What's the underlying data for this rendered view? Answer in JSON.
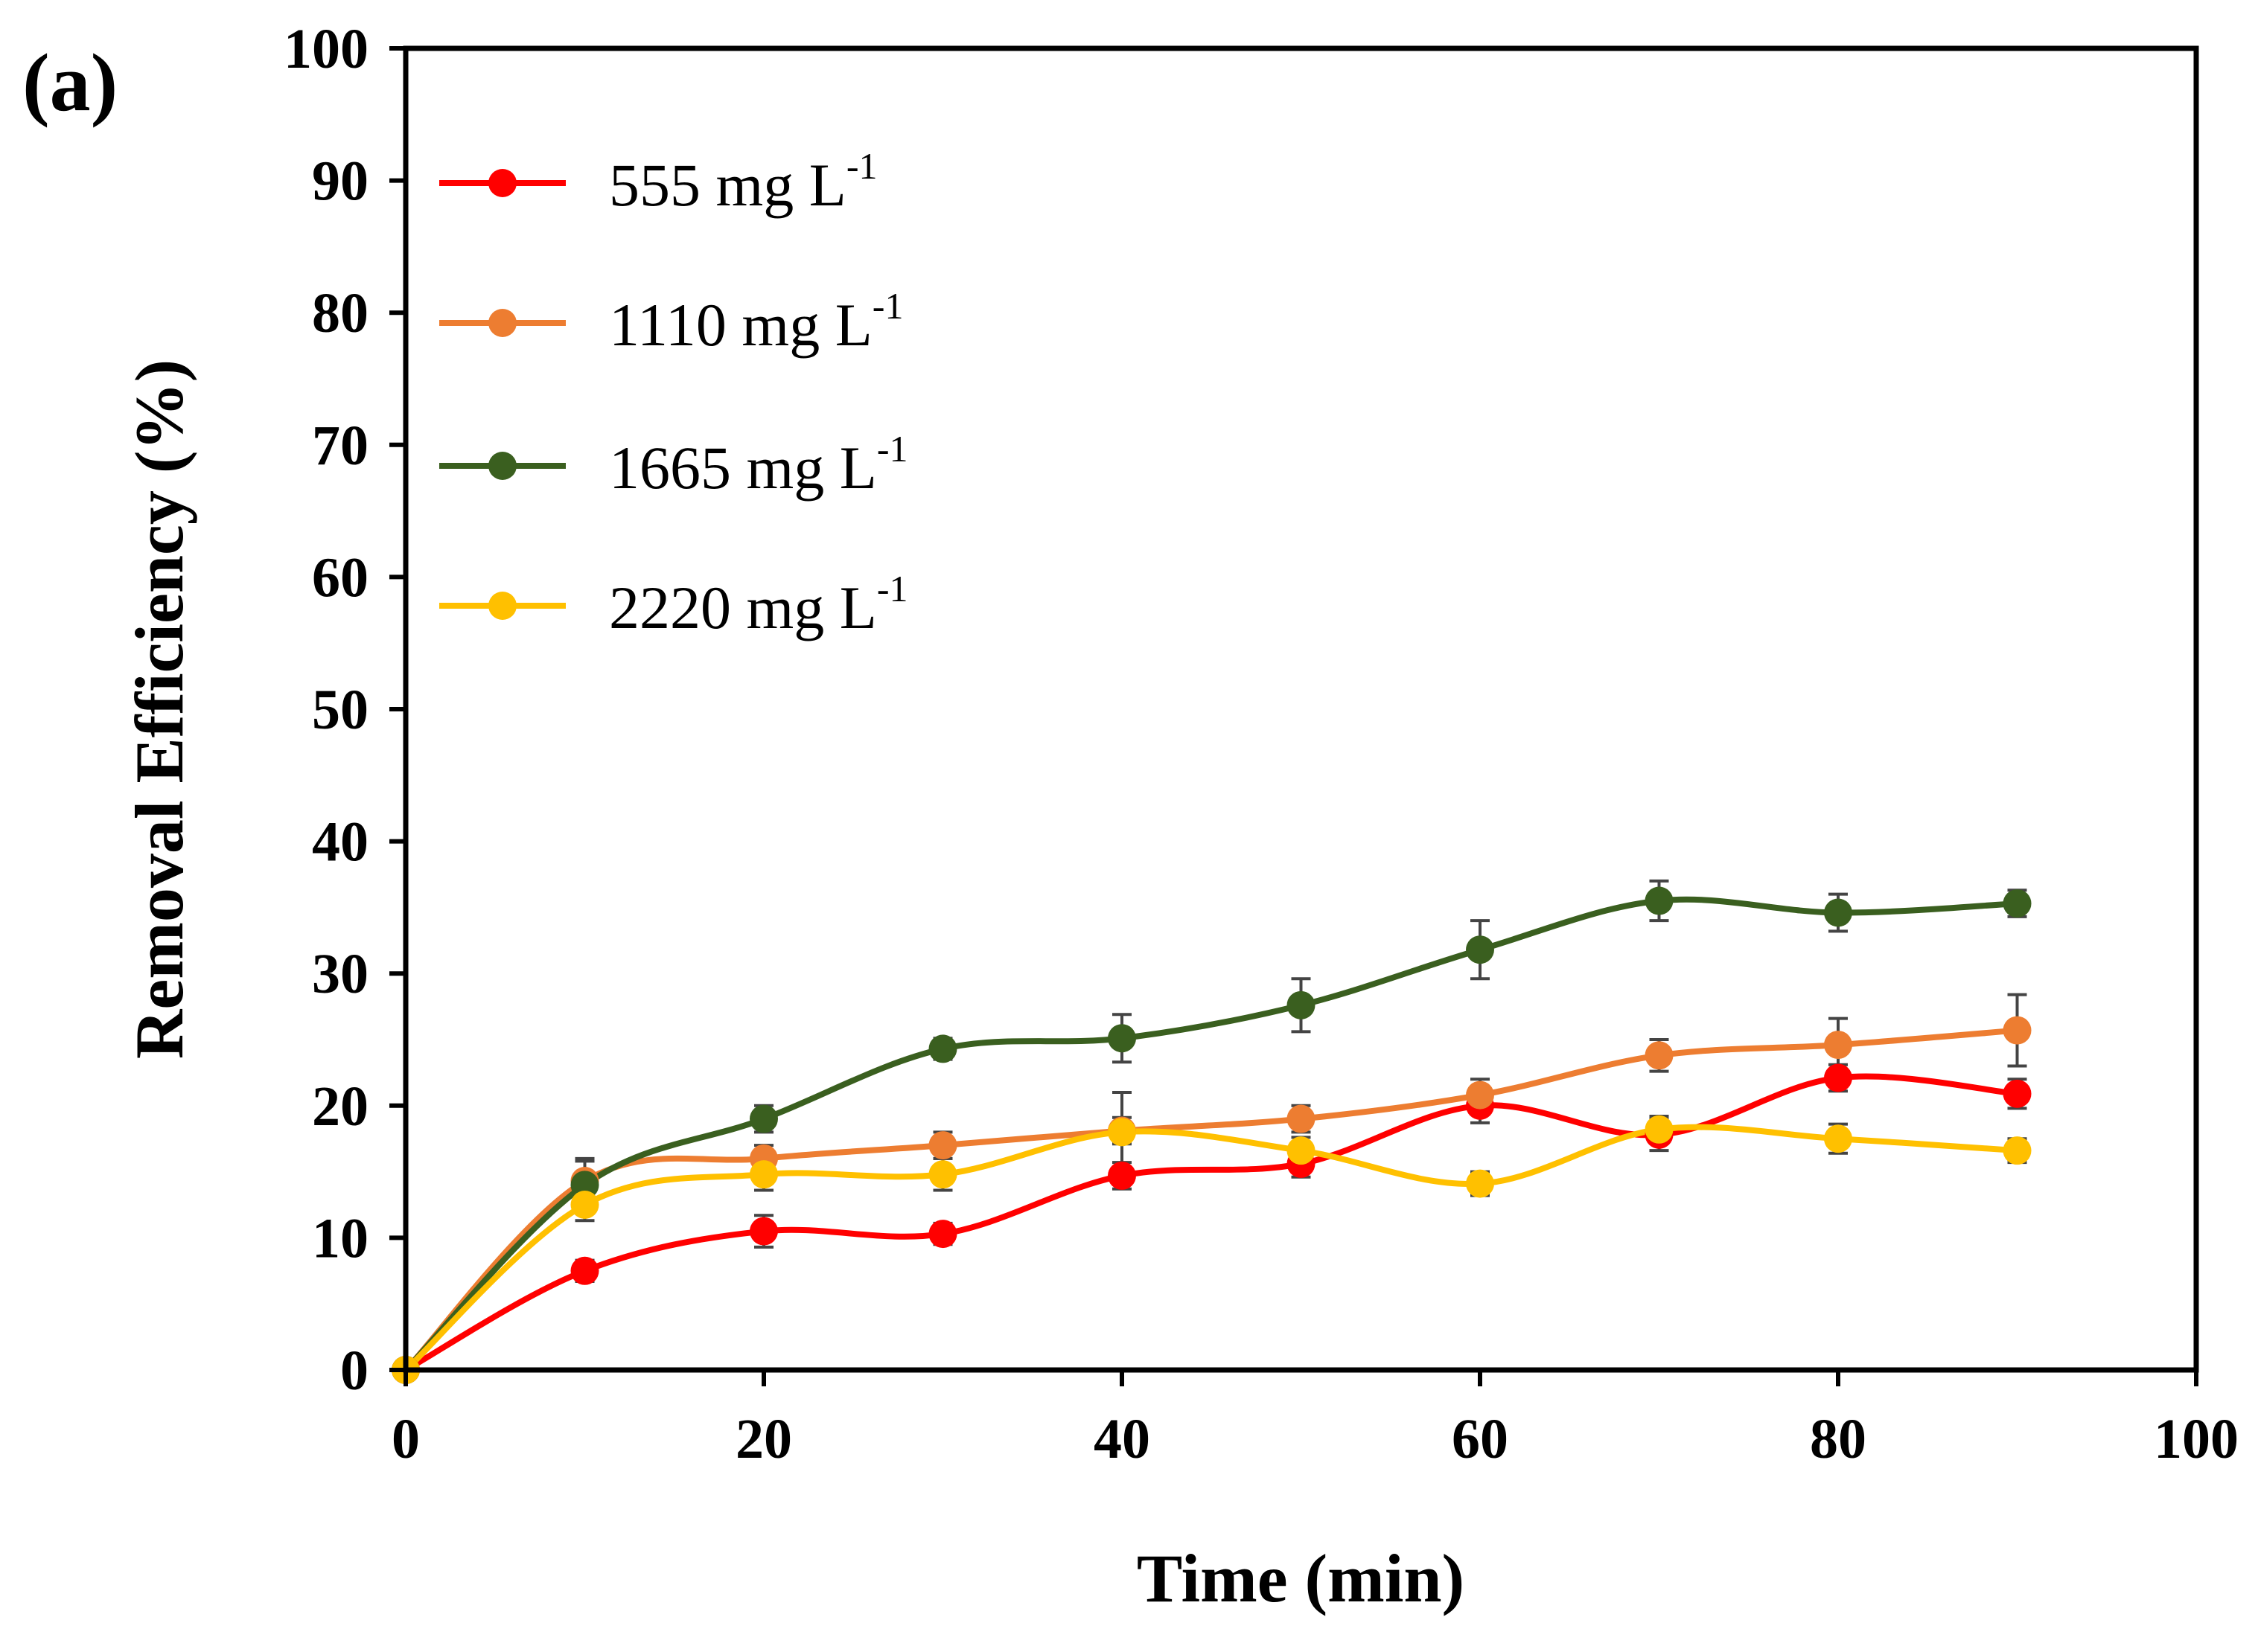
{
  "chart_data": {
    "type": "line",
    "panel_label": "(a)",
    "xlabel": "Time (min)",
    "ylabel": "Removal Efficiency (%)",
    "xlim": [
      0,
      100
    ],
    "ylim": [
      0,
      100
    ],
    "x_ticks": [
      "0",
      "20",
      "40",
      "60",
      "80",
      "100"
    ],
    "y_ticks": [
      "0",
      "10",
      "20",
      "30",
      "40",
      "50",
      "60",
      "70",
      "80",
      "90",
      "100"
    ],
    "grid": false,
    "legend_position": "top-left",
    "x": [
      0,
      10,
      20,
      30,
      40,
      50,
      60,
      70,
      80,
      90
    ],
    "series": [
      {
        "name": "555 mg L-1",
        "label_main": "555 mg L",
        "label_sup": "-1",
        "color": "#ff0000",
        "values": [
          0,
          7.5,
          10.5,
          10.3,
          14.7,
          15.6,
          20.0,
          17.8,
          22.1,
          20.9
        ],
        "errors": [
          0.3,
          0.8,
          1.2,
          0.8,
          1.0,
          1.0,
          1.3,
          1.2,
          1.0,
          1.1
        ]
      },
      {
        "name": "1110 mg L-1",
        "label_main": "1110 mg L",
        "label_sup": "-1",
        "color": "#ed7d31",
        "values": [
          0,
          14.3,
          16.0,
          17.0,
          18.1,
          19.0,
          20.8,
          23.8,
          24.6,
          25.7
        ],
        "errors": [
          0.3,
          1.5,
          1.0,
          1.0,
          1.0,
          1.0,
          1.2,
          1.2,
          2.0,
          2.7
        ]
      },
      {
        "name": "1665 mg L-1",
        "label_main": "1665 mg L",
        "label_sup": "-1",
        "color": "#3a5f1f",
        "values": [
          0,
          14.0,
          19.0,
          24.3,
          25.1,
          27.6,
          31.8,
          35.5,
          34.6,
          35.3
        ],
        "errors": [
          0.3,
          2.0,
          1.0,
          0.8,
          1.8,
          2.0,
          2.2,
          1.5,
          1.4,
          1.0
        ]
      },
      {
        "name": "2220 mg L-1",
        "label_main": "2220 mg L",
        "label_sup": "-1",
        "color": "#ffc000",
        "values": [
          0,
          12.5,
          14.8,
          14.8,
          18.0,
          16.6,
          14.1,
          18.2,
          17.5,
          16.6
        ],
        "errors": [
          0.3,
          1.2,
          1.2,
          1.2,
          3.0,
          1.0,
          0.9,
          1.0,
          1.1,
          0.9
        ]
      }
    ]
  }
}
